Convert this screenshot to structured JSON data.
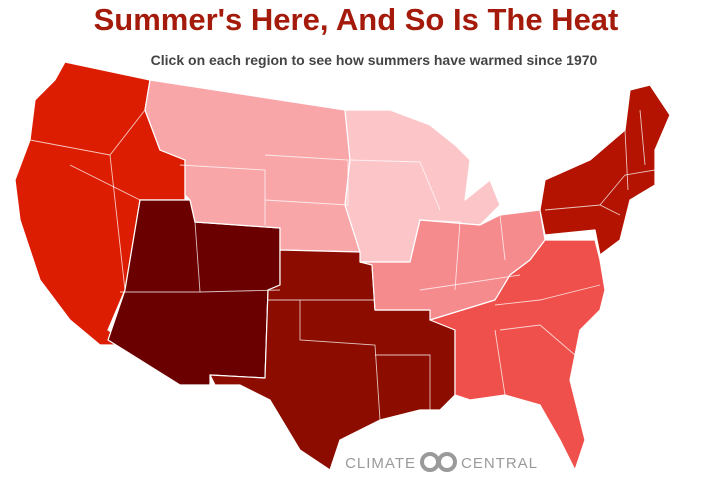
{
  "header": {
    "title": "Summer's Here, And So Is The Heat",
    "subtitle": "Click on each region to see how summers have warmed since 1970"
  },
  "logo": {
    "left": "CLIMATE",
    "right": "CENTRAL"
  }
}
